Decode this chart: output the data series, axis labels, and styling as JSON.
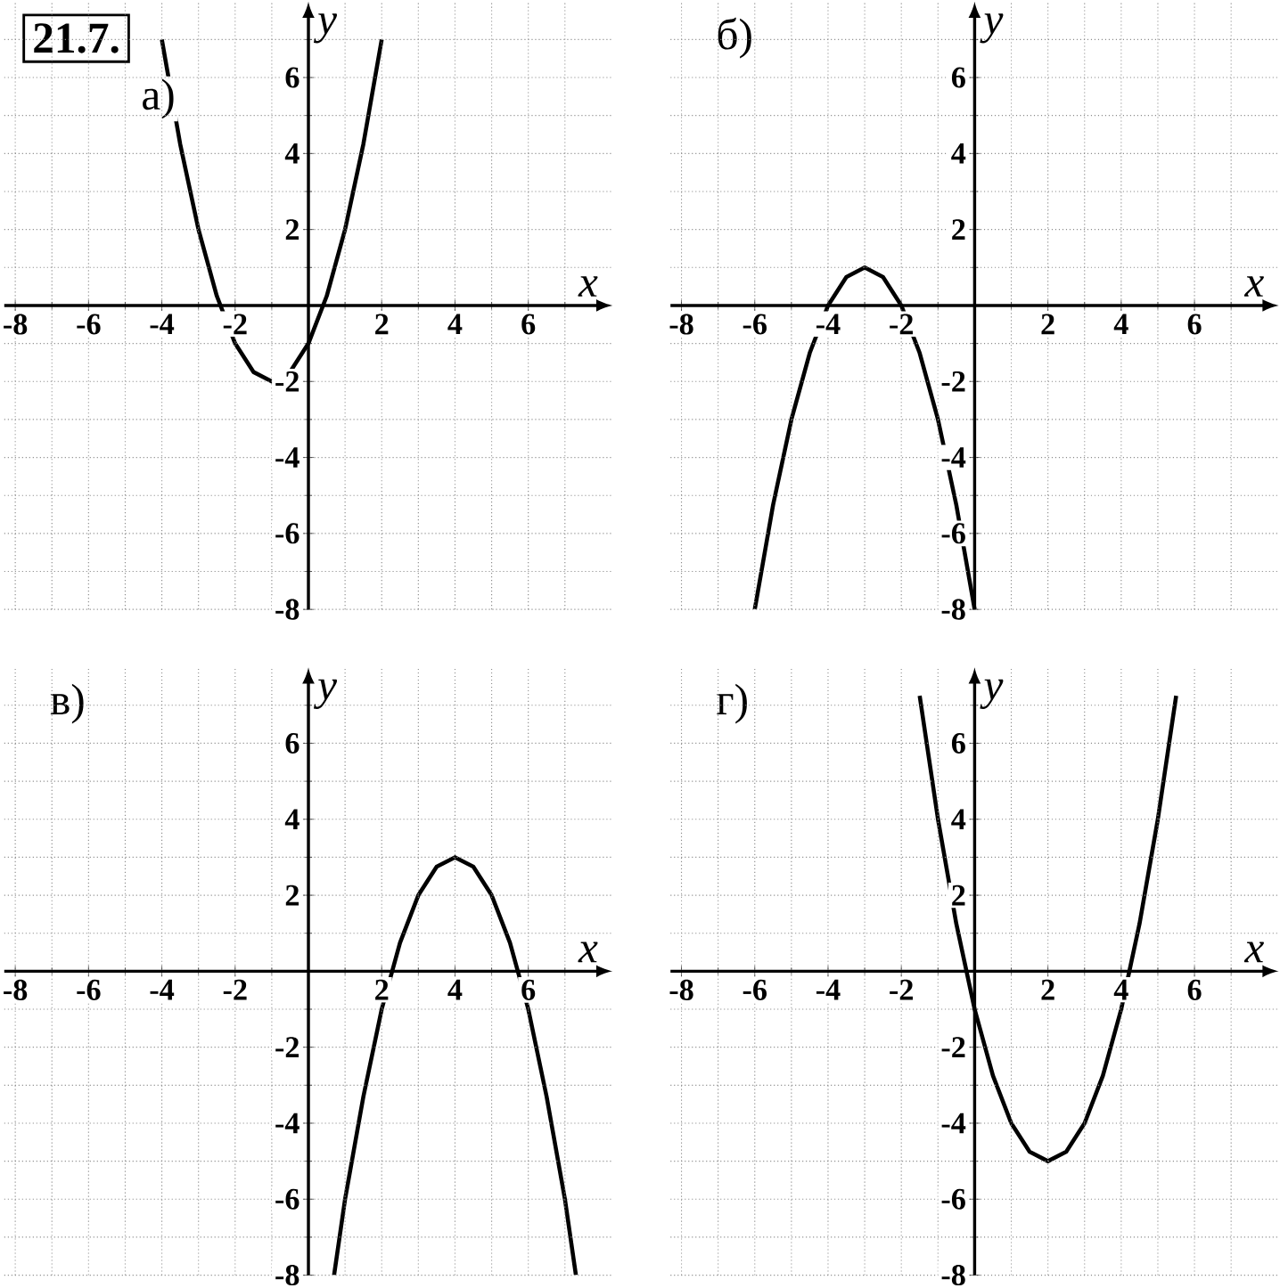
{
  "chart_data": [
    {
      "type": "line",
      "title": "а)",
      "annotations": [
        "21.7."
      ],
      "xlabel": "x",
      "ylabel": "y",
      "xlim": [
        -8.3,
        8.3
      ],
      "ylim": [
        -8,
        8
      ],
      "grid": true,
      "xticks": [
        -8,
        {
          "value": -7,
          "label": null
        },
        -6,
        {
          "value": -5,
          "label": null
        },
        -4,
        {
          "value": -3,
          "label": null
        },
        -2,
        {
          "value": -1,
          "label": null
        },
        {
          "value": 1,
          "label": null
        },
        2,
        {
          "value": 3,
          "label": null
        },
        4,
        {
          "value": 5,
          "label": null
        },
        6,
        {
          "value": 7,
          "label": null
        }
      ],
      "yticks": [
        -8,
        {
          "value": -7,
          "label": null
        },
        -6,
        {
          "value": -5,
          "label": null
        },
        -4,
        {
          "value": -3,
          "label": null
        },
        -2,
        {
          "value": -1,
          "label": null
        },
        {
          "value": 1,
          "label": null
        },
        2,
        {
          "value": 3,
          "label": null
        },
        4,
        {
          "value": 5,
          "label": null
        },
        6,
        {
          "value": 7,
          "label": null
        }
      ],
      "series": [
        {
          "color": "#000000",
          "x": [
            -4,
            -3.5,
            -3,
            -2.5,
            -2,
            -1.5,
            -1,
            -0.5,
            0,
            0.5,
            1,
            1.5,
            2
          ],
          "values": [
            7,
            4.25,
            2,
            0.25,
            -1,
            -1.75,
            -2,
            -1.75,
            -1,
            0.25,
            2,
            4.25,
            7
          ]
        }
      ]
    },
    {
      "type": "line",
      "title": "б)",
      "xlabel": "x",
      "ylabel": "y",
      "xlim": [
        -8.3,
        8.3
      ],
      "ylim": [
        -8,
        8
      ],
      "grid": true,
      "xticks": [
        -8,
        {
          "value": -7,
          "label": null
        },
        -6,
        {
          "value": -5,
          "label": null
        },
        -4,
        {
          "value": -3,
          "label": null
        },
        -2,
        {
          "value": -1,
          "label": null
        },
        {
          "value": 1,
          "label": null
        },
        2,
        {
          "value": 3,
          "label": null
        },
        4,
        {
          "value": 5,
          "label": null
        },
        6,
        {
          "value": 7,
          "label": null
        }
      ],
      "yticks": [
        -8,
        {
          "value": -7,
          "label": null
        },
        -6,
        {
          "value": -5,
          "label": null
        },
        -4,
        {
          "value": -3,
          "label": null
        },
        -2,
        {
          "value": -1,
          "label": null
        },
        {
          "value": 1,
          "label": null
        },
        2,
        {
          "value": 3,
          "label": null
        },
        4,
        {
          "value": 5,
          "label": null
        },
        6,
        {
          "value": 7,
          "label": null
        }
      ],
      "series": [
        {
          "color": "#000000",
          "x": [
            -6,
            -5.5,
            -5,
            -4.5,
            -4,
            -3.5,
            -3,
            -2.5,
            -2,
            -1.5,
            -1,
            -0.5,
            0
          ],
          "values": [
            -8,
            -5.25,
            -3,
            -1.25,
            0,
            0.75,
            1,
            0.75,
            0,
            -1.25,
            -3,
            -5.25,
            -8
          ]
        }
      ]
    },
    {
      "type": "line",
      "title": "в)",
      "xlabel": "x",
      "ylabel": "y",
      "xlim": [
        -8.3,
        8.3
      ],
      "ylim": [
        -8,
        8
      ],
      "grid": true,
      "xticks": [
        -8,
        {
          "value": -7,
          "label": null
        },
        -6,
        {
          "value": -5,
          "label": null
        },
        -4,
        {
          "value": -3,
          "label": null
        },
        -2,
        {
          "value": -1,
          "label": null
        },
        {
          "value": 1,
          "label": null
        },
        2,
        {
          "value": 3,
          "label": null
        },
        4,
        {
          "value": 5,
          "label": null
        },
        6,
        {
          "value": 7,
          "label": null
        }
      ],
      "yticks": [
        -8,
        {
          "value": -7,
          "label": null
        },
        -6,
        {
          "value": -5,
          "label": null
        },
        -4,
        {
          "value": -3,
          "label": null
        },
        -2,
        {
          "value": -1,
          "label": null
        },
        {
          "value": 1,
          "label": null
        },
        2,
        {
          "value": 3,
          "label": null
        },
        4,
        {
          "value": 5,
          "label": null
        },
        6,
        {
          "value": 7,
          "label": null
        }
      ],
      "series": [
        {
          "color": "#000000",
          "x": [
            0.7,
            1,
            1.5,
            2,
            2.5,
            3,
            3.5,
            4,
            4.5,
            5,
            5.5,
            6,
            6.5,
            7,
            7.3
          ],
          "values": [
            -8,
            -6,
            -3.3,
            -1,
            0.75,
            2,
            2.75,
            3,
            2.75,
            2,
            0.75,
            -1,
            -3.3,
            -6,
            -8
          ]
        }
      ]
    },
    {
      "type": "line",
      "title": "г)",
      "xlabel": "x",
      "ylabel": "y",
      "xlim": [
        -8.3,
        8.3
      ],
      "ylim": [
        -8,
        8
      ],
      "grid": true,
      "xticks": [
        -8,
        {
          "value": -7,
          "label": null
        },
        -6,
        {
          "value": -5,
          "label": null
        },
        -4,
        {
          "value": -3,
          "label": null
        },
        -2,
        {
          "value": -1,
          "label": null
        },
        {
          "value": 1,
          "label": null
        },
        2,
        {
          "value": 3,
          "label": null
        },
        4,
        {
          "value": 5,
          "label": null
        },
        6,
        {
          "value": 7,
          "label": null
        }
      ],
      "yticks": [
        -8,
        {
          "value": -7,
          "label": null
        },
        -6,
        {
          "value": -5,
          "label": null
        },
        -4,
        {
          "value": -3,
          "label": null
        },
        -2,
        {
          "value": -1,
          "label": null
        },
        {
          "value": 1,
          "label": null
        },
        2,
        {
          "value": 3,
          "label": null
        },
        4,
        {
          "value": 5,
          "label": null
        },
        6,
        {
          "value": 7,
          "label": null
        }
      ],
      "series": [
        {
          "color": "#000000",
          "x": [
            -1.5,
            -1,
            -0.5,
            0,
            0.5,
            1,
            1.5,
            2,
            2.5,
            3,
            3.5,
            4,
            4.5,
            5,
            5.5
          ],
          "values": [
            7.25,
            4,
            1.25,
            -1,
            -2.75,
            -4,
            -4.75,
            -5,
            -4.75,
            -4,
            -2.75,
            -1,
            1.25,
            4,
            7.25
          ]
        }
      ]
    }
  ]
}
